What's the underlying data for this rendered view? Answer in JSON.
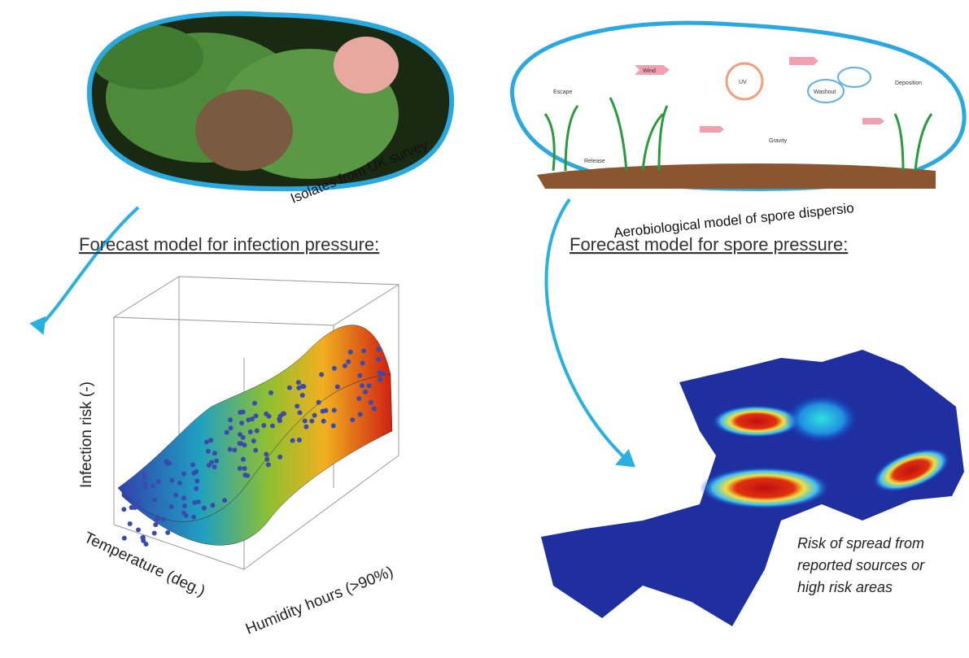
{
  "photo_caption": "Isolates from UK survey",
  "dispersal_diagram": {
    "labels": [
      "Escape",
      "Wind",
      "UV",
      "Washout",
      "Deposition",
      "Release",
      "Gravity"
    ],
    "caption": "Aerobiological model of spore dispersio"
  },
  "infection_model": {
    "heading": "Forecast model for infection pressure:",
    "z_axis_label": "Infection risk (-)",
    "x_axis_label": "Temperature (deg.)",
    "y_axis_label": "Humidity hours (>90%)"
  },
  "spore_model": {
    "heading": "Forecast model for spore pressure:",
    "map_note": [
      "Risk of spread from",
      "reported sources or",
      "high risk areas"
    ]
  }
}
